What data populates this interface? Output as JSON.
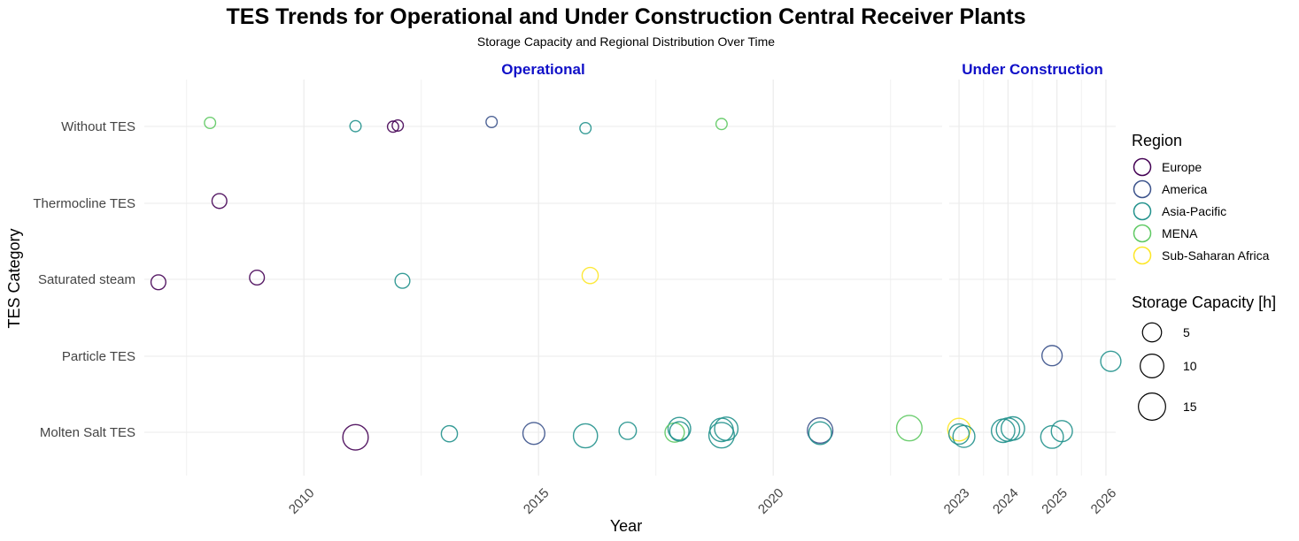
{
  "chart_data": {
    "type": "scatter",
    "title": "TES Trends for Operational and Under Construction Central Receiver Plants",
    "subtitle": "Storage Capacity and Regional Distribution Over Time",
    "xlabel": "Year",
    "ylabel": "TES Category",
    "categories": [
      "Without TES",
      "Thermocline TES",
      "Saturated steam",
      "Particle TES",
      "Molten Salt TES"
    ],
    "facets": [
      {
        "name": "Operational",
        "xlim": [
          2006.6,
          2023.6
        ],
        "x_ticks": [
          2010,
          2015,
          2020
        ]
      },
      {
        "name": "Under Construction",
        "xlim": [
          2022.8,
          2026.2
        ],
        "x_ticks": [
          2023,
          2024,
          2025,
          2026
        ]
      }
    ],
    "legend": {
      "region_title": "Region",
      "regions": [
        {
          "name": "Europe",
          "color": "#440154"
        },
        {
          "name": "America",
          "color": "#3b528b"
        },
        {
          "name": "Asia-Pacific",
          "color": "#21918c"
        },
        {
          "name": "MENA",
          "color": "#5ec962"
        },
        {
          "name": "Sub-Saharan Africa",
          "color": "#fde725"
        }
      ],
      "size_title": "Storage Capacity [h]",
      "size_breaks": [
        5,
        10,
        15
      ],
      "placement": "right"
    },
    "points": [
      {
        "facet": "Operational",
        "year": 2008.0,
        "category": "Without TES",
        "region": "MENA",
        "storage": 1
      },
      {
        "facet": "Operational",
        "year": 2011.1,
        "category": "Without TES",
        "region": "Asia-Pacific",
        "storage": 1
      },
      {
        "facet": "Operational",
        "year": 2011.9,
        "category": "Without TES",
        "region": "Europe",
        "storage": 1
      },
      {
        "facet": "Operational",
        "year": 2012.0,
        "category": "Without TES",
        "region": "Europe",
        "storage": 1
      },
      {
        "facet": "Operational",
        "year": 2014.0,
        "category": "Without TES",
        "region": "America",
        "storage": 1
      },
      {
        "facet": "Operational",
        "year": 2016.0,
        "category": "Without TES",
        "region": "Asia-Pacific",
        "storage": 1
      },
      {
        "facet": "Operational",
        "year": 2018.9,
        "category": "Without TES",
        "region": "MENA",
        "storage": 1
      },
      {
        "facet": "Operational",
        "year": 2008.2,
        "category": "Thermocline TES",
        "region": "Europe",
        "storage": 3
      },
      {
        "facet": "Operational",
        "year": 2006.9,
        "category": "Saturated steam",
        "region": "Europe",
        "storage": 3
      },
      {
        "facet": "Operational",
        "year": 2009.0,
        "category": "Saturated steam",
        "region": "Europe",
        "storage": 3
      },
      {
        "facet": "Operational",
        "year": 2012.1,
        "category": "Saturated steam",
        "region": "Asia-Pacific",
        "storage": 3
      },
      {
        "facet": "Operational",
        "year": 2016.1,
        "category": "Saturated steam",
        "region": "Sub-Saharan Africa",
        "storage": 4
      },
      {
        "facet": "Operational",
        "year": 2011.1,
        "category": "Molten Salt TES",
        "region": "Europe",
        "storage": 15
      },
      {
        "facet": "Operational",
        "year": 2013.1,
        "category": "Molten Salt TES",
        "region": "Asia-Pacific",
        "storage": 4
      },
      {
        "facet": "Operational",
        "year": 2014.9,
        "category": "Molten Salt TES",
        "region": "America",
        "storage": 10
      },
      {
        "facet": "Operational",
        "year": 2016.0,
        "category": "Molten Salt TES",
        "region": "Asia-Pacific",
        "storage": 13
      },
      {
        "facet": "Operational",
        "year": 2016.9,
        "category": "Molten Salt TES",
        "region": "Asia-Pacific",
        "storage": 5
      },
      {
        "facet": "Operational",
        "year": 2017.9,
        "category": "Molten Salt TES",
        "region": "MENA",
        "storage": 7
      },
      {
        "facet": "Operational",
        "year": 2018.0,
        "category": "Molten Salt TES",
        "region": "Asia-Pacific",
        "storage": 11
      },
      {
        "facet": "Operational",
        "year": 2018.0,
        "category": "Molten Salt TES",
        "region": "Asia-Pacific",
        "storage": 7
      },
      {
        "facet": "Operational",
        "year": 2018.9,
        "category": "Molten Salt TES",
        "region": "Asia-Pacific",
        "storage": 12
      },
      {
        "facet": "Operational",
        "year": 2018.9,
        "category": "Molten Salt TES",
        "region": "Asia-Pacific",
        "storage": 15
      },
      {
        "facet": "Operational",
        "year": 2019.0,
        "category": "Molten Salt TES",
        "region": "Asia-Pacific",
        "storage": 12
      },
      {
        "facet": "Operational",
        "year": 2021.0,
        "category": "Molten Salt TES",
        "region": "America",
        "storage": 15
      },
      {
        "facet": "Operational",
        "year": 2021.0,
        "category": "Molten Salt TES",
        "region": "Asia-Pacific",
        "storage": 11
      },
      {
        "facet": "Operational",
        "year": 2022.9,
        "category": "Molten Salt TES",
        "region": "MENA",
        "storage": 15
      },
      {
        "facet": "Under Construction",
        "year": 2024.9,
        "category": "Particle TES",
        "region": "America",
        "storage": 8
      },
      {
        "facet": "Under Construction",
        "year": 2026.1,
        "category": "Particle TES",
        "region": "Asia-Pacific",
        "storage": 8
      },
      {
        "facet": "Under Construction",
        "year": 2023.0,
        "category": "Molten Salt TES",
        "region": "Sub-Saharan Africa",
        "storage": 11
      },
      {
        "facet": "Under Construction",
        "year": 2023.0,
        "category": "Molten Salt TES",
        "region": "Asia-Pacific",
        "storage": 8
      },
      {
        "facet": "Under Construction",
        "year": 2023.1,
        "category": "Molten Salt TES",
        "region": "Asia-Pacific",
        "storage": 10
      },
      {
        "facet": "Under Construction",
        "year": 2023.9,
        "category": "Molten Salt TES",
        "region": "Asia-Pacific",
        "storage": 12
      },
      {
        "facet": "Under Construction",
        "year": 2024.0,
        "category": "Molten Salt TES",
        "region": "Asia-Pacific",
        "storage": 12
      },
      {
        "facet": "Under Construction",
        "year": 2024.1,
        "category": "Molten Salt TES",
        "region": "Asia-Pacific",
        "storage": 12
      },
      {
        "facet": "Under Construction",
        "year": 2024.9,
        "category": "Molten Salt TES",
        "region": "Asia-Pacific",
        "storage": 11
      },
      {
        "facet": "Under Construction",
        "year": 2025.1,
        "category": "Molten Salt TES",
        "region": "Asia-Pacific",
        "storage": 9
      }
    ]
  }
}
